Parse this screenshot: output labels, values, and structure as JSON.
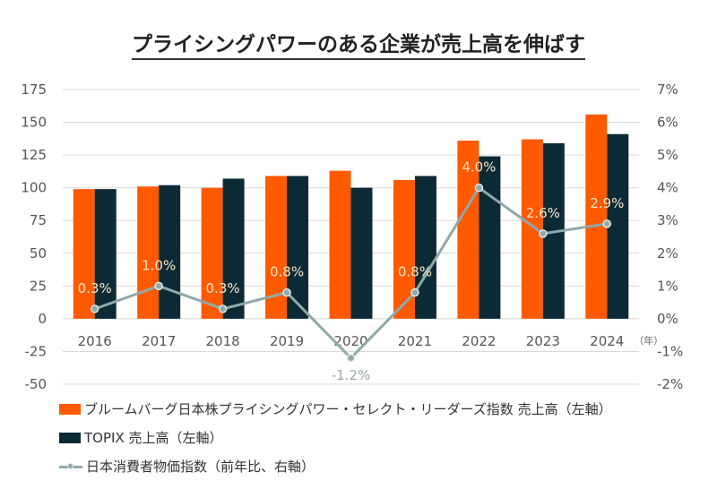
{
  "title": "プライシングパワーのある企業が売上高を伸ばす",
  "chart_data": {
    "type": "bar",
    "title": "プライシングパワーのある企業が売上高を伸ばす",
    "categories": [
      "2016",
      "2017",
      "2018",
      "2019",
      "2020",
      "2021",
      "2022",
      "2023",
      "2024"
    ],
    "x_unit_label": "（年）",
    "series": [
      {
        "name": "ブルームバーグ日本株プライシングパワー・セレクト・リーダーズ指数 売上高（左軸）",
        "type": "bar",
        "axis": "left",
        "color": "#ff5a00",
        "values": [
          99,
          101,
          100,
          109,
          113,
          106,
          136,
          137,
          156
        ]
      },
      {
        "name": "TOPIX 売上高（左軸）",
        "type": "bar",
        "axis": "left",
        "color": "#0b2a35",
        "values": [
          99,
          102,
          107,
          109,
          100,
          109,
          124,
          134,
          141
        ]
      },
      {
        "name": "日本消費者物価指数（前年比、右軸）",
        "type": "line",
        "axis": "right",
        "color": "#8fa9a8",
        "values": [
          0.3,
          1.0,
          0.3,
          0.8,
          -1.2,
          0.8,
          4.0,
          2.6,
          2.9
        ],
        "labels": [
          "0.3%",
          "1.0%",
          "0.3%",
          "0.8%",
          "-1.2%",
          "0.8%",
          "4.0%",
          "2.6%",
          "2.9%"
        ]
      }
    ],
    "left_axis": {
      "ylim": [
        -50,
        175
      ],
      "ticks": [
        "175",
        "150",
        "125",
        "100",
        "75",
        "50",
        "25",
        "0",
        "-25",
        "-50"
      ],
      "tick_values": [
        175,
        150,
        125,
        100,
        75,
        50,
        25,
        0,
        -25,
        -50
      ]
    },
    "right_axis": {
      "ylim": [
        -2,
        7
      ],
      "ticks": [
        "7%",
        "6%",
        "5%",
        "4%",
        "3%",
        "2%",
        "1%",
        "0%",
        "-1%",
        "-2%"
      ],
      "tick_values": [
        7,
        6,
        5,
        4,
        3,
        2,
        1,
        0,
        -1,
        -2
      ]
    },
    "grid": true,
    "legend_position": "bottom-left"
  },
  "legend": [
    "ブルームバーグ日本株プライシングパワー・セレクト・リーダーズ指数 売上高（左軸）",
    "TOPIX 売上高（左軸）",
    "日本消費者物価指数（前年比、右軸）"
  ]
}
